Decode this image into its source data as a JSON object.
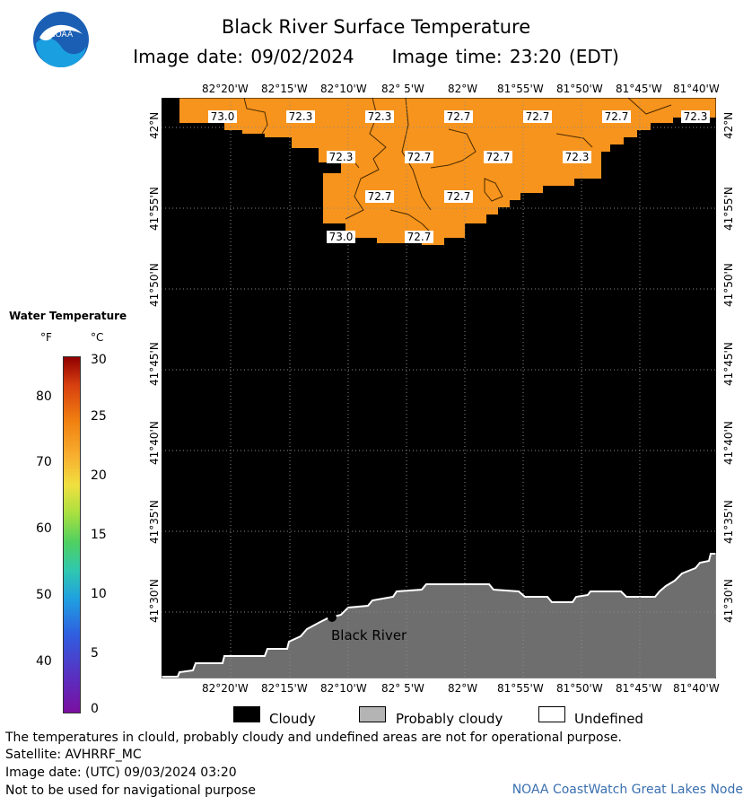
{
  "title": "Black River Surface Temperature",
  "image_date_label": "Image date: 09/02/2024",
  "image_time_label": "Image time: 23:20 (EDT)",
  "logo_text": "NOAA",
  "lon_ticks": [
    "82°20'W",
    "82°15'W",
    "82°10'W",
    "82° 5'W",
    "82°W",
    "81°55'W",
    "81°50'W",
    "81°45'W",
    "81°40'W"
  ],
  "lat_ticks": [
    "42°N",
    "41°55'N",
    "41°50'N",
    "41°45'N",
    "41°40'N",
    "41°35'N",
    "41°30'N"
  ],
  "legend": {
    "title": "Water Temperature",
    "unit_f": "°F",
    "unit_c": "°C",
    "f_ticks": [
      "80",
      "70",
      "60",
      "50",
      "40"
    ],
    "c_ticks": [
      "30",
      "25",
      "20",
      "15",
      "10",
      "5",
      "0"
    ]
  },
  "temperature_labels": [
    {
      "text": "73.0"
    },
    {
      "text": "72.3"
    },
    {
      "text": "72.3"
    },
    {
      "text": "72.7"
    },
    {
      "text": "72.7"
    },
    {
      "text": "72.7"
    },
    {
      "text": "72.3"
    },
    {
      "text": "72.3"
    },
    {
      "text": "72.7"
    },
    {
      "text": "72.7"
    },
    {
      "text": "72.3"
    },
    {
      "text": "72.7"
    },
    {
      "text": "72.7"
    },
    {
      "text": "73.0"
    },
    {
      "text": "72.7"
    }
  ],
  "place_label": "Black River",
  "key": {
    "cloudy": "Cloudy",
    "probably_cloudy": "Probably cloudy",
    "undefined": "Undefined"
  },
  "colors": {
    "water_warm": "#f7941d",
    "cloud": "#000000",
    "land": "#6e6e6e"
  },
  "footer": {
    "disclaimer": "The temperatures in clould, probably cloudy and undefined areas are not for operational purpose.",
    "satellite": "Satellite: AVHRRF_MC",
    "utc_date": "Image date: (UTC) 09/03/2024  03:20",
    "nav_warning": "Not to be used for navigational purpose",
    "credit": "NOAA CoastWatch Great Lakes Node"
  }
}
